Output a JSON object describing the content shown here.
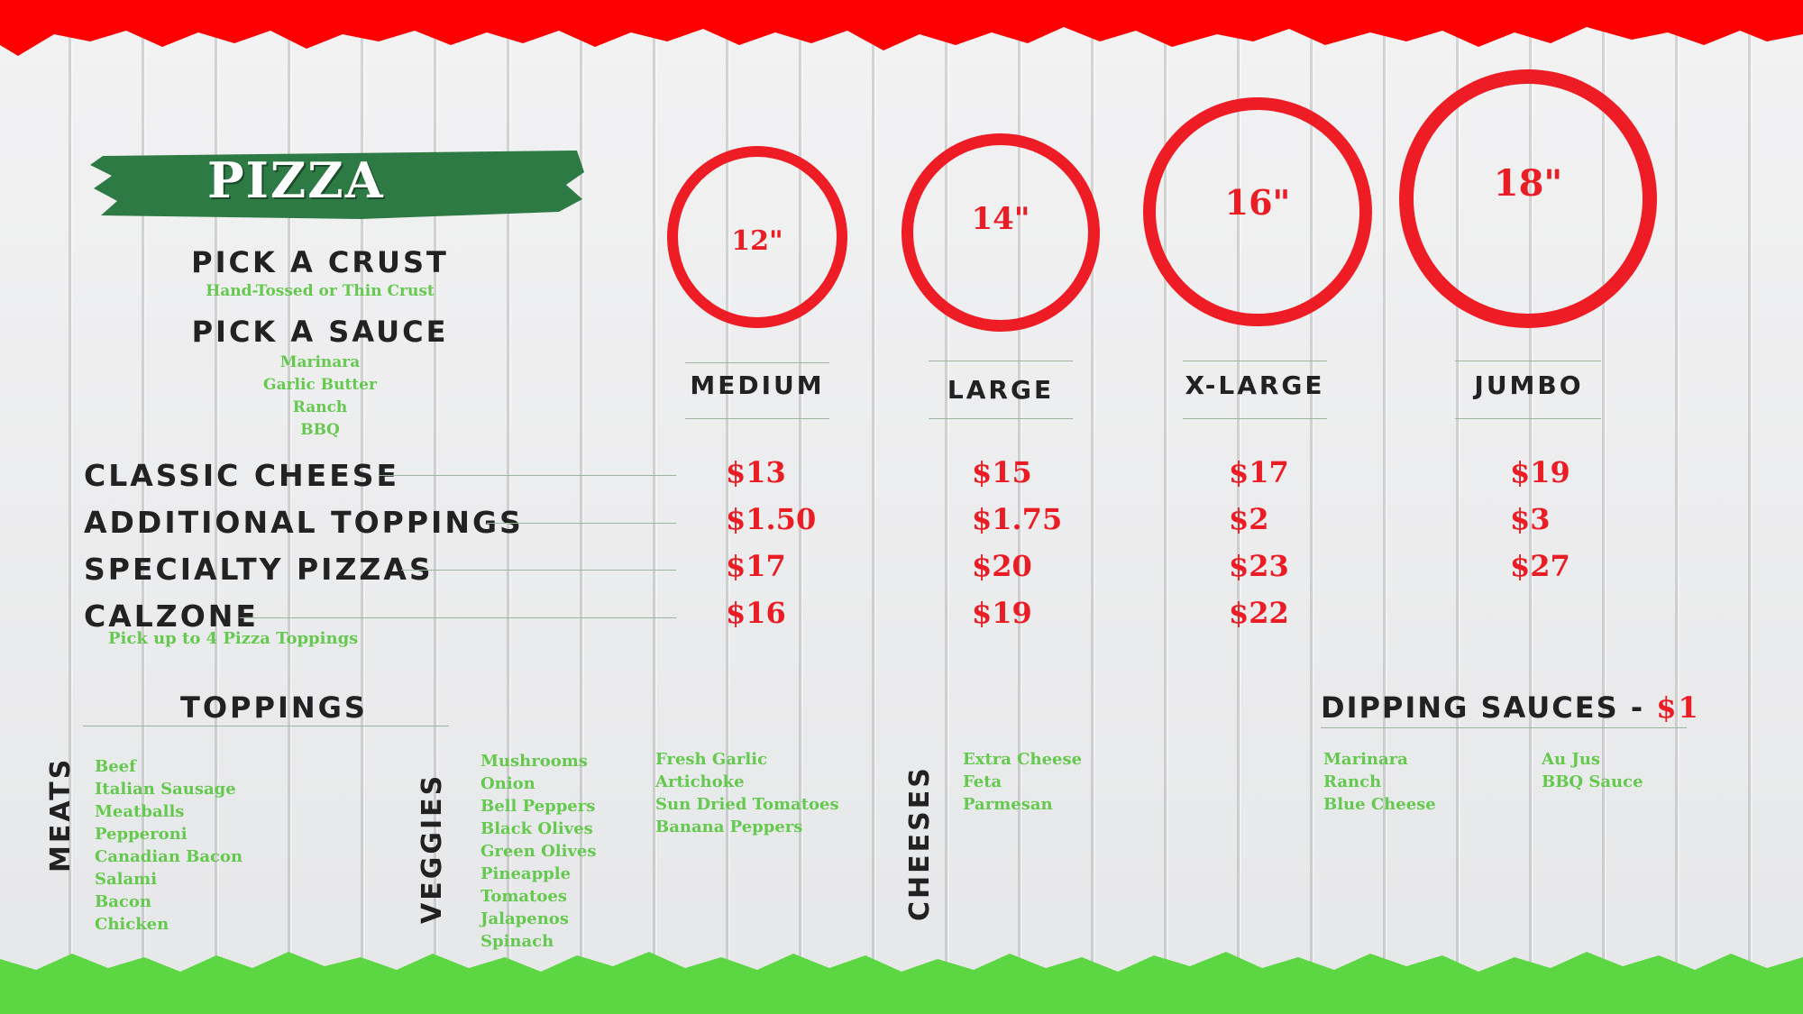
{
  "colors": {
    "red": "#ea1c24",
    "green": "#65c94f",
    "banner": "#2e7a44",
    "ink": "#222222"
  },
  "title": "PIZZA",
  "crust": {
    "heading": "PICK A CRUST",
    "options": "Hand-Tossed or Thin Crust"
  },
  "sauce": {
    "heading": "PICK A SAUCE",
    "options": [
      "Marinara",
      "Garlic Butter",
      "Ranch",
      "BBQ"
    ]
  },
  "sizes": [
    {
      "inches": "12\"",
      "name": "MEDIUM"
    },
    {
      "inches": "14\"",
      "name": "LARGE"
    },
    {
      "inches": "16\"",
      "name": "X-LARGE"
    },
    {
      "inches": "18\"",
      "name": "JUMBO"
    }
  ],
  "items": [
    {
      "name": "CLASSIC CHEESE",
      "prices": [
        "$13",
        "$15",
        "$17",
        "$19"
      ]
    },
    {
      "name": "ADDITIONAL TOPPINGS",
      "prices": [
        "$1.50",
        "$1.75",
        "$2",
        "$3"
      ]
    },
    {
      "name": "SPECIALTY PIZZAS",
      "prices": [
        "$17",
        "$20",
        "$23",
        "$27"
      ]
    },
    {
      "name": "CALZONE",
      "prices": [
        "$16",
        "$19",
        "$22",
        ""
      ],
      "note": "Pick up to 4 Pizza Toppings"
    }
  ],
  "toppings": {
    "heading": "TOPPINGS",
    "meats_label": "MEATS",
    "meats": [
      "Beef",
      "Italian Sausage",
      "Meatballs",
      "Pepperoni",
      "Canadian Bacon",
      "Salami",
      "Bacon",
      "Chicken"
    ],
    "veggies_label": "VEGGIES",
    "veggies_col1": [
      "Mushrooms",
      "Onion",
      "Bell Peppers",
      "Black Olives",
      "Green Olives",
      "Pineapple",
      "Tomatoes",
      "Jalapenos",
      "Spinach"
    ],
    "veggies_col2": [
      "Fresh Garlic",
      "Artichoke",
      "Sun Dried Tomatoes",
      "Banana Peppers"
    ],
    "cheeses_label": "CHEESES",
    "cheeses": [
      "Extra Cheese",
      "Feta",
      "Parmesan"
    ]
  },
  "dipping": {
    "heading": "DIPPING SAUCES - ",
    "price": "$1",
    "col1": [
      "Marinara",
      "Ranch",
      "Blue Cheese"
    ],
    "col2": [
      "Au Jus",
      "BBQ Sauce"
    ]
  }
}
